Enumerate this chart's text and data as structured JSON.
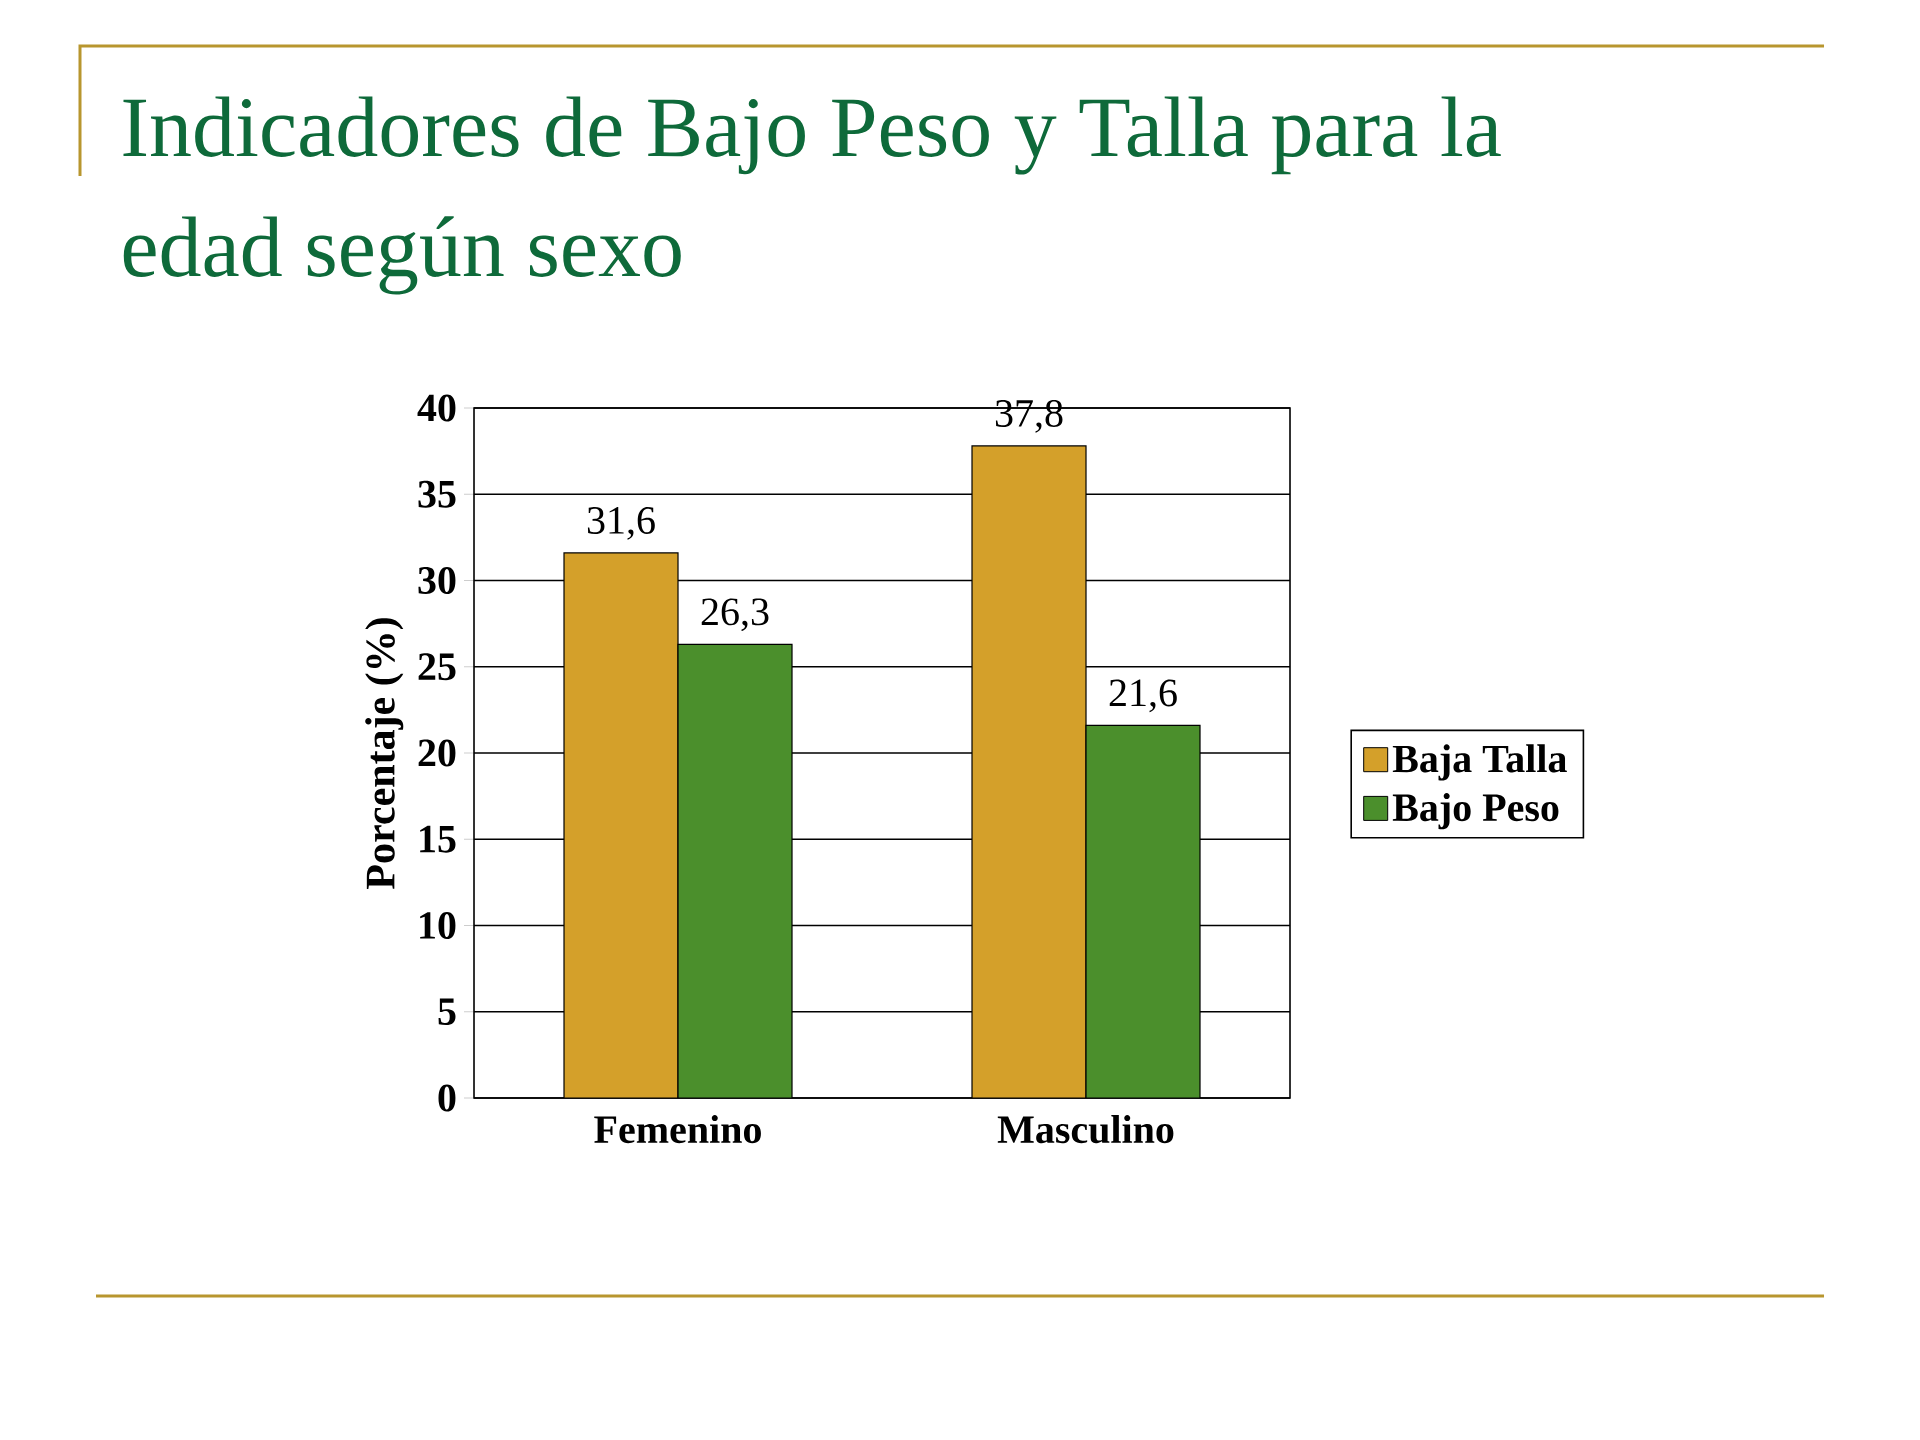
{
  "chart_data": {
    "type": "bar",
    "title": "Indicadores de Bajo Peso y Talla para la edad según sexo",
    "ylabel": "Porcentaje (%)",
    "categories": [
      "Femenino",
      "Masculino"
    ],
    "series": [
      {
        "name": "Baja Talla",
        "color": "#d4a02a",
        "values": [
          31.6,
          37.8
        ],
        "value_labels": [
          "31,6",
          "37,8"
        ]
      },
      {
        "name": "Bajo Peso",
        "color": "#4b8f2c",
        "values": [
          26.3,
          21.6
        ],
        "value_labels": [
          "26,3",
          "21,6"
        ]
      }
    ],
    "ylim": [
      0,
      40
    ],
    "yticks": [
      0,
      5,
      10,
      15,
      20,
      25,
      30,
      35,
      40
    ],
    "grid": "y",
    "legend": "right"
  }
}
